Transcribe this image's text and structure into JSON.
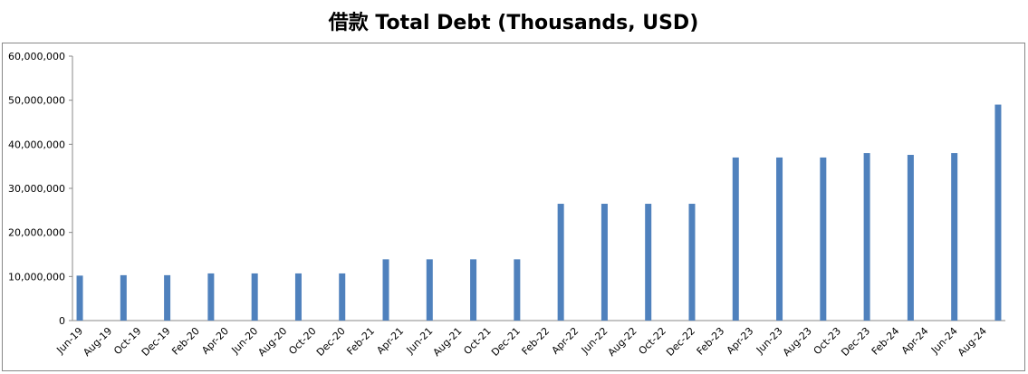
{
  "chart_data": {
    "type": "bar",
    "title": "借款 Total Debt (Thousands, USD)",
    "categories": [
      "Jun-19",
      null,
      "Aug-19",
      null,
      "Oct-19",
      null,
      "Dec-19",
      null,
      "Feb-20",
      null,
      "Apr-20",
      null,
      "Jun-20",
      null,
      "Aug-20",
      null,
      "Oct-20",
      null,
      "Dec-20",
      null,
      "Feb-21",
      null,
      "Apr-21",
      null,
      "Jun-21",
      null,
      "Aug-21",
      null,
      "Oct-21",
      null,
      "Dec-21",
      null,
      "Feb-22",
      null,
      "Apr-22",
      null,
      "Jun-22",
      null,
      "Aug-22",
      null,
      "Oct-22",
      null,
      "Dec-22",
      null,
      "Feb-23",
      null,
      "Apr-23",
      null,
      "Jun-23",
      null,
      "Aug-23",
      null,
      "Oct-23",
      null,
      "Dec-23",
      null,
      "Feb-24",
      null,
      "Apr-24",
      null,
      "Jun-24",
      null,
      "Aug-24",
      null
    ],
    "values": [
      10200000,
      null,
      null,
      10300000,
      null,
      null,
      10300000,
      null,
      null,
      10700000,
      null,
      null,
      10700000,
      null,
      null,
      10700000,
      null,
      null,
      10700000,
      null,
      null,
      13900000,
      null,
      null,
      13900000,
      null,
      null,
      13900000,
      null,
      null,
      13900000,
      null,
      null,
      26500000,
      null,
      null,
      26500000,
      null,
      null,
      26500000,
      null,
      null,
      26500000,
      null,
      null,
      37000000,
      null,
      null,
      37000000,
      null,
      null,
      37000000,
      null,
      null,
      38000000,
      null,
      null,
      37600000,
      null,
      null,
      38000000,
      null,
      null,
      49000000
    ],
    "color": "#4f81bd",
    "ylim": [
      0,
      60000000
    ],
    "yticks": [
      0,
      {
        "value": 10000000,
        "label": "10,000,000"
      },
      {
        "value": 20000000,
        "label": "20,000,000"
      },
      {
        "value": 30000000,
        "label": "30,000,000"
      },
      {
        "value": 40000000,
        "label": "40,000,000"
      },
      {
        "value": 50000000,
        "label": "50,000,000"
      },
      {
        "value": 60000000,
        "label": "60,000,000"
      }
    ],
    "grid": false
  }
}
